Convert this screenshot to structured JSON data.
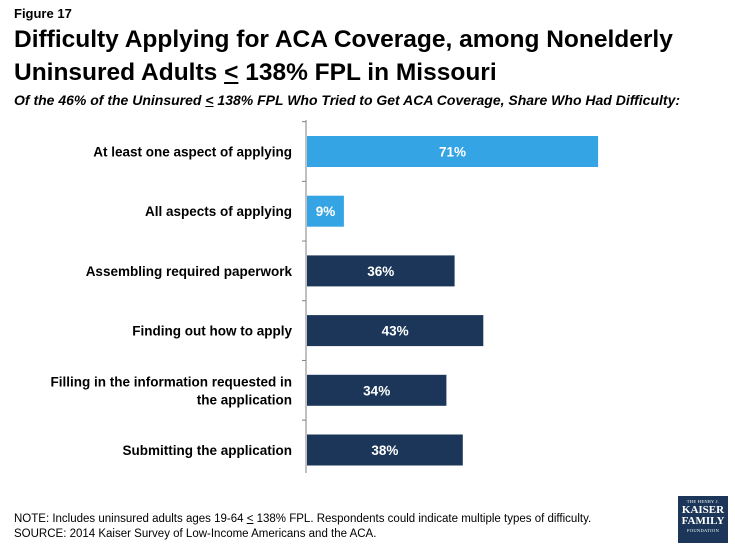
{
  "header": {
    "figure_label": "Figure 17",
    "title_line1": "Difficulty Applying for ACA Coverage, among Nonelderly",
    "title_line2_pre": "Uninsured Adults ",
    "title_line2_sym": "<",
    "title_line2_post": " 138% FPL in Missouri",
    "subtitle_pre": "Of the 46% of the Uninsured ",
    "subtitle_sym": "<",
    "subtitle_post": " 138% FPL Who Tried to Get ACA Coverage, Share Who Had Difficulty:"
  },
  "chart_data": {
    "type": "bar",
    "orientation": "horizontal",
    "title": "Difficulty Applying for ACA Coverage, among Nonelderly Uninsured Adults < 138% FPL in Missouri",
    "subtitle": "Of the 46% of the Uninsured < 138% FPL Who Tried to Get ACA Coverage, Share Who Had Difficulty:",
    "categories": [
      "At least one aspect of applying",
      "All aspects of applying",
      "Assembling required paperwork",
      "Finding out how to apply",
      "Filling in the information requested in the application",
      "Submitting the application"
    ],
    "category_label_lines": [
      [
        "At least one aspect of applying"
      ],
      [
        "All aspects of applying"
      ],
      [
        "Assembling required paperwork"
      ],
      [
        "Finding out how to apply"
      ],
      [
        "Filling in the information requested in",
        "the application"
      ],
      [
        "Submitting the application"
      ]
    ],
    "values": [
      71,
      9,
      36,
      43,
      34,
      38
    ],
    "value_labels": [
      "71%",
      "9%",
      "36%",
      "43%",
      "34%",
      "38%"
    ],
    "bar_colors": [
      "#35a4e5",
      "#35a4e5",
      "#1b3659",
      "#1b3659",
      "#1b3659",
      "#1b3659"
    ],
    "xlim": [
      0,
      100
    ],
    "xlabel": "",
    "ylabel": "",
    "grid": false,
    "legend": "none"
  },
  "footer": {
    "note_pre": "NOTE: Includes uninsured adults ages 19-64 ",
    "note_sym": "<",
    "note_post": " 138% FPL. Respondents could indicate multiple types of difficulty.",
    "source": "SOURCE: 2014 Kaiser Survey of Low-Income Americans and the ACA."
  },
  "logo": {
    "line1": "THE HENRY J.",
    "line2": "KAISER",
    "line3": "FAMILY",
    "line4": "FOUNDATION"
  },
  "colors": {
    "light_bar": "#35a4e5",
    "dark_bar": "#1b3659",
    "axis": "#808080"
  }
}
